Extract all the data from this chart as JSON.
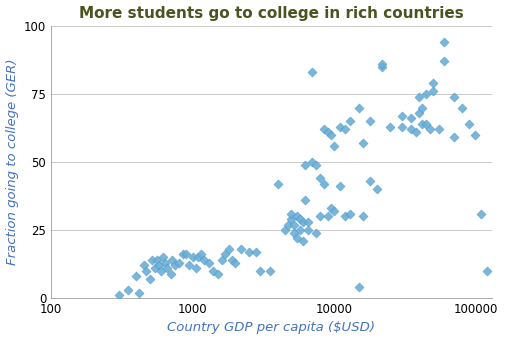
{
  "title": "More students go to college in rich countries",
  "xlabel": "Country GDP per capita ($USD)",
  "ylabel": "Fraction going to college (GER)",
  "xlim": [
    100,
    130000
  ],
  "ylim": [
    0,
    100
  ],
  "yticks": [
    0,
    25,
    50,
    75,
    100
  ],
  "xticks": [
    100,
    1000,
    10000,
    100000
  ],
  "xticklabels": [
    "100",
    "1000",
    "10000",
    "100000"
  ],
  "marker_color": "#6BAED6",
  "marker_edge_color": "#4292C6",
  "title_color": "#4B5320",
  "axis_label_color": "#4472C4",
  "background_color": "#FFFFFF",
  "points": [
    [
      300,
      1
    ],
    [
      350,
      3
    ],
    [
      400,
      8
    ],
    [
      420,
      2
    ],
    [
      450,
      12
    ],
    [
      470,
      10
    ],
    [
      500,
      7
    ],
    [
      520,
      14
    ],
    [
      540,
      11
    ],
    [
      560,
      14
    ],
    [
      580,
      12
    ],
    [
      600,
      10
    ],
    [
      620,
      15
    ],
    [
      640,
      13
    ],
    [
      660,
      11
    ],
    [
      700,
      9
    ],
    [
      720,
      14
    ],
    [
      750,
      12
    ],
    [
      800,
      13
    ],
    [
      850,
      16
    ],
    [
      900,
      16
    ],
    [
      950,
      12
    ],
    [
      1000,
      15
    ],
    [
      1050,
      11
    ],
    [
      1100,
      15
    ],
    [
      1150,
      16
    ],
    [
      1200,
      14
    ],
    [
      1300,
      13
    ],
    [
      1400,
      10
    ],
    [
      1500,
      9
    ],
    [
      1600,
      14
    ],
    [
      1700,
      16
    ],
    [
      1800,
      18
    ],
    [
      1900,
      14
    ],
    [
      2000,
      13
    ],
    [
      2200,
      18
    ],
    [
      2500,
      17
    ],
    [
      2800,
      17
    ],
    [
      3000,
      10
    ],
    [
      3500,
      10
    ],
    [
      4000,
      42
    ],
    [
      4500,
      25
    ],
    [
      4700,
      27
    ],
    [
      5000,
      29
    ],
    [
      5000,
      31
    ],
    [
      5200,
      27
    ],
    [
      5200,
      24
    ],
    [
      5500,
      30
    ],
    [
      5500,
      22
    ],
    [
      5700,
      29
    ],
    [
      5700,
      25
    ],
    [
      6000,
      28
    ],
    [
      6000,
      21
    ],
    [
      6200,
      49
    ],
    [
      6200,
      36
    ],
    [
      6500,
      25
    ],
    [
      6500,
      28
    ],
    [
      7000,
      83
    ],
    [
      7000,
      50
    ],
    [
      7500,
      24
    ],
    [
      7500,
      49
    ],
    [
      8000,
      44
    ],
    [
      8000,
      30
    ],
    [
      8500,
      62
    ],
    [
      8500,
      42
    ],
    [
      9000,
      61
    ],
    [
      9000,
      30
    ],
    [
      9500,
      60
    ],
    [
      9500,
      33
    ],
    [
      10000,
      56
    ],
    [
      10000,
      32
    ],
    [
      11000,
      63
    ],
    [
      11000,
      41
    ],
    [
      12000,
      62
    ],
    [
      12000,
      30
    ],
    [
      13000,
      65
    ],
    [
      13000,
      31
    ],
    [
      15000,
      70
    ],
    [
      15000,
      4
    ],
    [
      16000,
      57
    ],
    [
      16000,
      30
    ],
    [
      18000,
      65
    ],
    [
      18000,
      43
    ],
    [
      20000,
      40
    ],
    [
      22000,
      85
    ],
    [
      22000,
      86
    ],
    [
      25000,
      63
    ],
    [
      30000,
      63
    ],
    [
      30000,
      67
    ],
    [
      35000,
      62
    ],
    [
      35000,
      66
    ],
    [
      38000,
      61
    ],
    [
      40000,
      74
    ],
    [
      40000,
      68
    ],
    [
      42000,
      64
    ],
    [
      42000,
      70
    ],
    [
      45000,
      75
    ],
    [
      45000,
      64
    ],
    [
      48000,
      62
    ],
    [
      50000,
      79
    ],
    [
      50000,
      76
    ],
    [
      55000,
      62
    ],
    [
      60000,
      94
    ],
    [
      60000,
      87
    ],
    [
      70000,
      74
    ],
    [
      70000,
      59
    ],
    [
      80000,
      70
    ],
    [
      90000,
      64
    ],
    [
      100000,
      60
    ],
    [
      110000,
      31
    ],
    [
      120000,
      10
    ]
  ]
}
